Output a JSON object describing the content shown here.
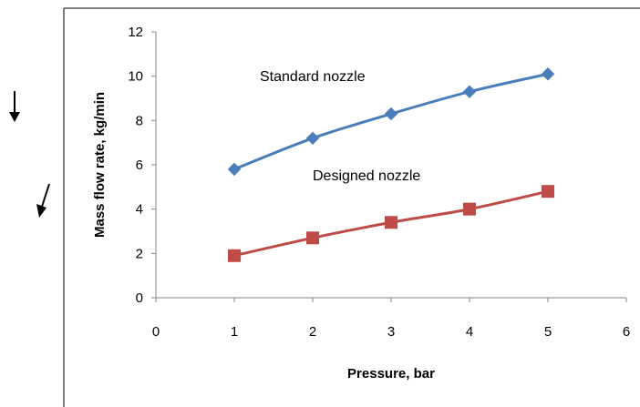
{
  "chart_data": {
    "type": "line",
    "title": "",
    "xlabel": "Pressure, bar",
    "ylabel": "Mass flow rate, kg/min",
    "xlim": [
      0,
      6
    ],
    "ylim": [
      0,
      12
    ],
    "x_ticks": [
      0,
      1,
      2,
      3,
      4,
      5,
      6
    ],
    "y_ticks": [
      0,
      2,
      4,
      6,
      8,
      10,
      12
    ],
    "grid": false,
    "legend": "none (series labeled inline)",
    "series": [
      {
        "name": "Standard nozzle",
        "marker": "diamond",
        "color": "#4A7EBB",
        "x": [
          1,
          2,
          3,
          4,
          5
        ],
        "y": [
          5.8,
          7.2,
          8.3,
          9.3,
          10.1
        ]
      },
      {
        "name": "Designed nozzle",
        "marker": "square",
        "color": "#BE4B48",
        "x": [
          1,
          2,
          3,
          4,
          5
        ],
        "y": [
          1.9,
          2.7,
          3.4,
          4.0,
          4.8
        ]
      }
    ]
  }
}
